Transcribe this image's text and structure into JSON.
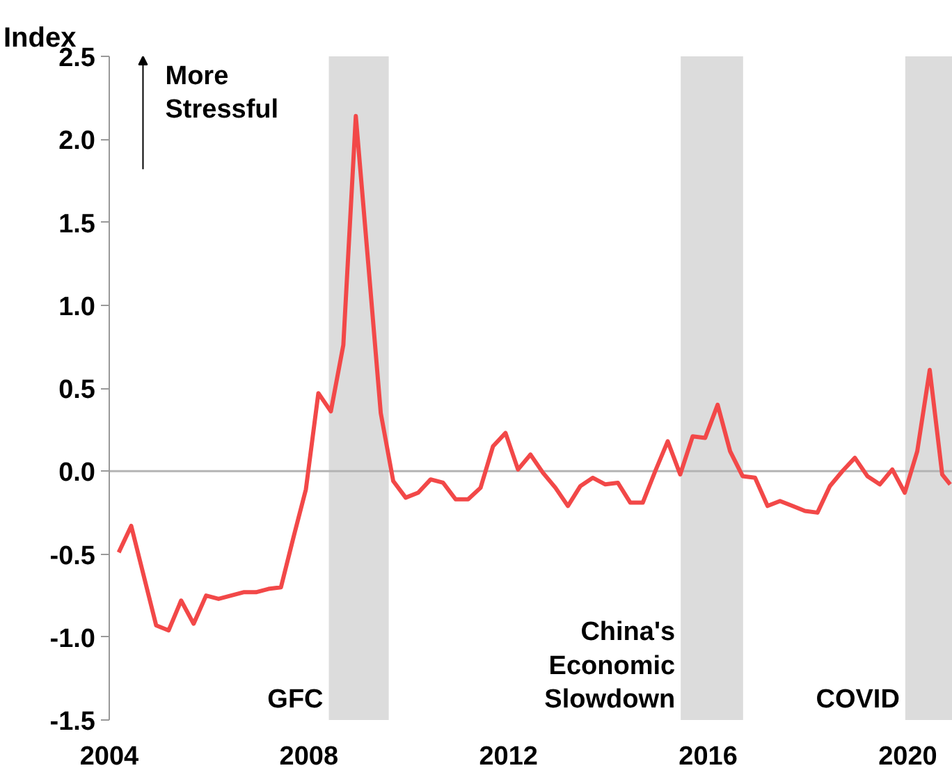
{
  "chart_data": {
    "type": "line",
    "ylabel": "Index",
    "x": [
      2004.19,
      2004.44,
      2004.69,
      2004.94,
      2005.19,
      2005.44,
      2005.69,
      2005.94,
      2006.19,
      2006.44,
      2006.69,
      2006.94,
      2007.19,
      2007.44,
      2007.69,
      2007.94,
      2008.19,
      2008.44,
      2008.69,
      2008.94,
      2009.19,
      2009.44,
      2009.69,
      2009.94,
      2010.19,
      2010.44,
      2010.69,
      2010.94,
      2011.19,
      2011.44,
      2011.69,
      2011.94,
      2012.19,
      2012.44,
      2012.69,
      2012.94,
      2013.19,
      2013.44,
      2013.69,
      2013.94,
      2014.19,
      2014.44,
      2014.69,
      2014.94,
      2015.19,
      2015.44,
      2015.69,
      2015.94,
      2016.19,
      2016.44,
      2016.69,
      2016.94,
      2017.19,
      2017.44,
      2017.69,
      2017.94,
      2018.19,
      2018.44,
      2018.69,
      2018.94,
      2019.19,
      2019.44,
      2019.69,
      2019.94,
      2020.19,
      2020.44,
      2020.69,
      2020.85
    ],
    "series": [
      {
        "color": "#f24848",
        "values": [
          -0.49,
          -0.33,
          -0.63,
          -0.93,
          -0.96,
          -0.78,
          -0.92,
          -0.75,
          -0.77,
          -0.75,
          -0.73,
          -0.73,
          -0.71,
          -0.7,
          -0.4,
          -0.11,
          0.47,
          0.36,
          0.76,
          2.14,
          1.25,
          0.35,
          -0.06,
          -0.16,
          -0.13,
          -0.05,
          -0.07,
          -0.17,
          -0.17,
          -0.1,
          0.15,
          0.23,
          0.01,
          0.1,
          -0.01,
          -0.1,
          -0.21,
          -0.09,
          -0.04,
          -0.08,
          -0.07,
          -0.19,
          -0.19,
          0.0,
          0.18,
          -0.02,
          0.21,
          0.2,
          0.4,
          0.12,
          -0.03,
          -0.04,
          -0.21,
          -0.18,
          -0.21,
          -0.24,
          -0.25,
          -0.09,
          0.0,
          0.08,
          -0.03,
          -0.08,
          0.01,
          -0.13,
          0.12,
          0.61,
          -0.02,
          -0.08
        ]
      }
    ],
    "xlim": [
      2004,
      2020.9
    ],
    "xticks": [
      2004,
      2008,
      2012,
      2016,
      2020
    ],
    "ylim": [
      -1.5,
      2.5
    ],
    "yticks": [
      {
        "value": -1.5,
        "label": "-1.5"
      },
      {
        "value": -1.0,
        "label": "-1.0"
      },
      {
        "value": -0.5,
        "label": "-0.5"
      },
      {
        "value": 0,
        "label": "0.0"
      },
      {
        "value": 0.5,
        "label": "0.5"
      },
      {
        "value": 1.0,
        "label": "1.0"
      },
      {
        "value": 1.5,
        "label": "1.5"
      },
      {
        "value": 2.0,
        "label": "2.0"
      },
      {
        "value": 2.5,
        "label": "2.5"
      }
    ],
    "ref_lines": [
      {
        "axis": "y",
        "value": 0,
        "color": "#b4b4b4"
      }
    ],
    "bands": [
      {
        "axis": "x",
        "from": 2008.4,
        "to": 2009.6,
        "label": "GFC",
        "color": "#dcdcdc"
      },
      {
        "axis": "x",
        "from": 2015.45,
        "to": 2016.7,
        "label": "China's\nEconomic\nSlowdown",
        "color": "#dcdcdc"
      },
      {
        "axis": "x",
        "from": 2019.95,
        "to": 2020.9,
        "label": "COVID",
        "color": "#dcdcdc"
      }
    ],
    "annotations": [
      "More\nStressful"
    ],
    "grid": false,
    "marker": "none",
    "line_style": "solid"
  }
}
